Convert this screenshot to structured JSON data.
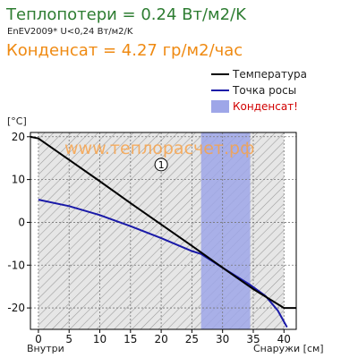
{
  "header": {
    "title": "Теплопотери = 0.24 Вт/м2/K",
    "subtitle": "EnEV2009* U<0,24 Вт/м2/K",
    "condensate": "Конденсат = 4.27 гр/м2/час"
  },
  "watermark": "www.теплорасчет.рф",
  "colors": {
    "temperature": "#000000",
    "dew_point": "#1a1aa8",
    "condensate": "#9ea6e8",
    "title_green": "#2e7d32",
    "condensate_orange": "#ef8a12",
    "watermark": "#f7a24a"
  },
  "chart_data": {
    "type": "line",
    "xlabel_left": "Внутри",
    "xlabel_right": "Снаружи [см]",
    "ylabel": "[°C]",
    "xlim": [
      -1.3,
      42
    ],
    "ylim": [
      -25,
      21
    ],
    "xticks": [
      0,
      5,
      10,
      15,
      20,
      25,
      30,
      35,
      40
    ],
    "yticks": [
      20,
      10,
      0,
      -10,
      -20
    ],
    "legend_position": "top-right",
    "series": [
      {
        "name": "Температура",
        "x": [
          -1.3,
          0,
          5,
          10,
          15,
          20,
          25,
          30,
          35,
          40,
          42
        ],
        "y": [
          20,
          19.6,
          14.6,
          9.6,
          4.5,
          -0.5,
          -5.5,
          -10.6,
          -15.6,
          -20,
          -20
        ]
      },
      {
        "name": "Точка росы",
        "x": [
          0,
          5,
          10,
          15,
          20,
          25,
          26.5,
          30,
          34.5,
          37,
          39,
          40.5
        ],
        "y": [
          5.3,
          3.8,
          1.7,
          -0.9,
          -3.7,
          -6.7,
          -7.4,
          -10.6,
          -14.6,
          -17.2,
          -20.6,
          -24.5
        ]
      }
    ],
    "condensate_zone": {
      "name": "Конденсат!",
      "x_from": 26.5,
      "x_to": 34.5
    },
    "annotations": [
      {
        "text": "1",
        "x": 20,
        "y": 13.5
      }
    ]
  }
}
